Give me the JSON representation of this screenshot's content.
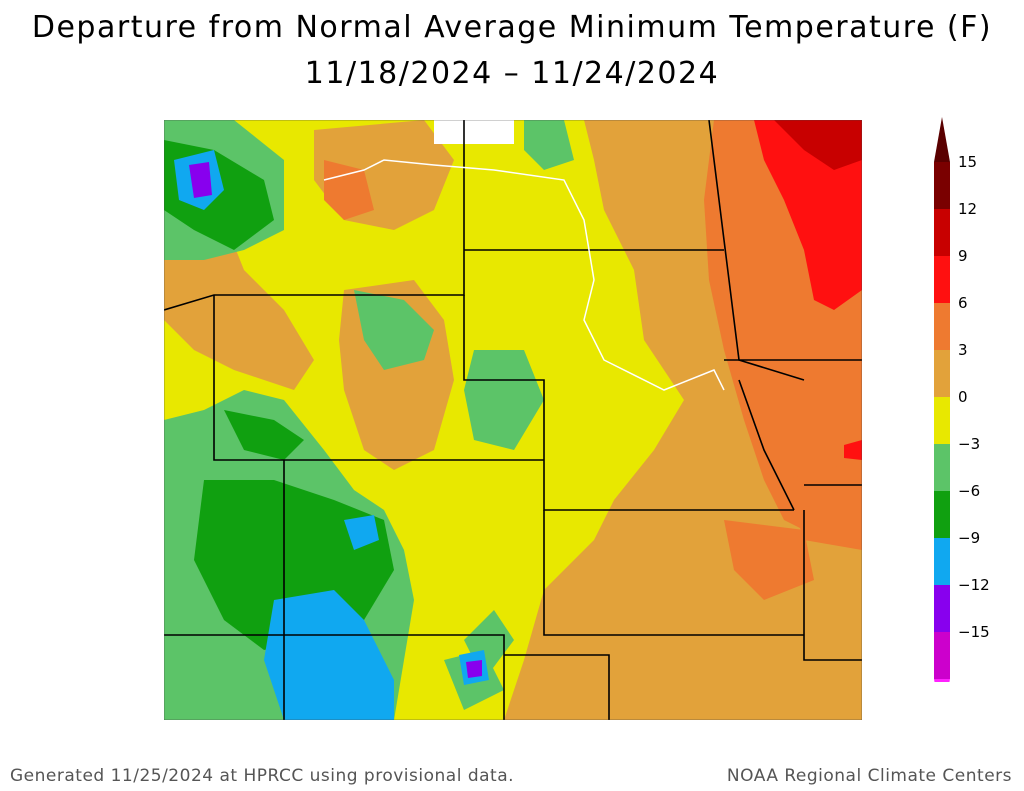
{
  "title": {
    "line1": "Departure from Normal Average Minimum Temperature (F)",
    "line2": "11/18/2024 – 11/24/2024"
  },
  "footer": {
    "left": "Generated 11/25/2024 at HPRCC using provisional data.",
    "right": "NOAA Regional Climate Centers"
  },
  "legend": {
    "bins": [
      {
        "label": "15",
        "color": "#7a0000"
      },
      {
        "label": "12",
        "color": "#c80000"
      },
      {
        "label": "9",
        "color": "#ff1010"
      },
      {
        "label": "6",
        "color": "#ee7a30"
      },
      {
        "label": "3",
        "color": "#e2a23a"
      },
      {
        "label": "0",
        "color": "#e8e800"
      },
      {
        "label": "−3",
        "color": "#5cc468"
      },
      {
        "label": "−6",
        "color": "#10a010"
      },
      {
        "label": "−9",
        "color": "#10a8f0"
      },
      {
        "label": "−12",
        "color": "#8800ee"
      },
      {
        "label": "−15",
        "color": "#cc00cc"
      }
    ],
    "top_arrow_color": "#5a0000",
    "bottom_arrow_color": "#ff22ff"
  },
  "colors": {
    "neg6_to_neg3": "#10a010",
    "neg3_to_0": "#5cc468",
    "zero_to_3": "#e8e800",
    "three_to_6": "#e2a23a",
    "six_to_9": "#ee7a30",
    "nine_to_12": "#ff1010",
    "twelve_to_15": "#c80000",
    "neg9_to_neg6": "#10a8f0",
    "neg12_to_neg9": "#8800ee",
    "missing": "#ffffff"
  }
}
